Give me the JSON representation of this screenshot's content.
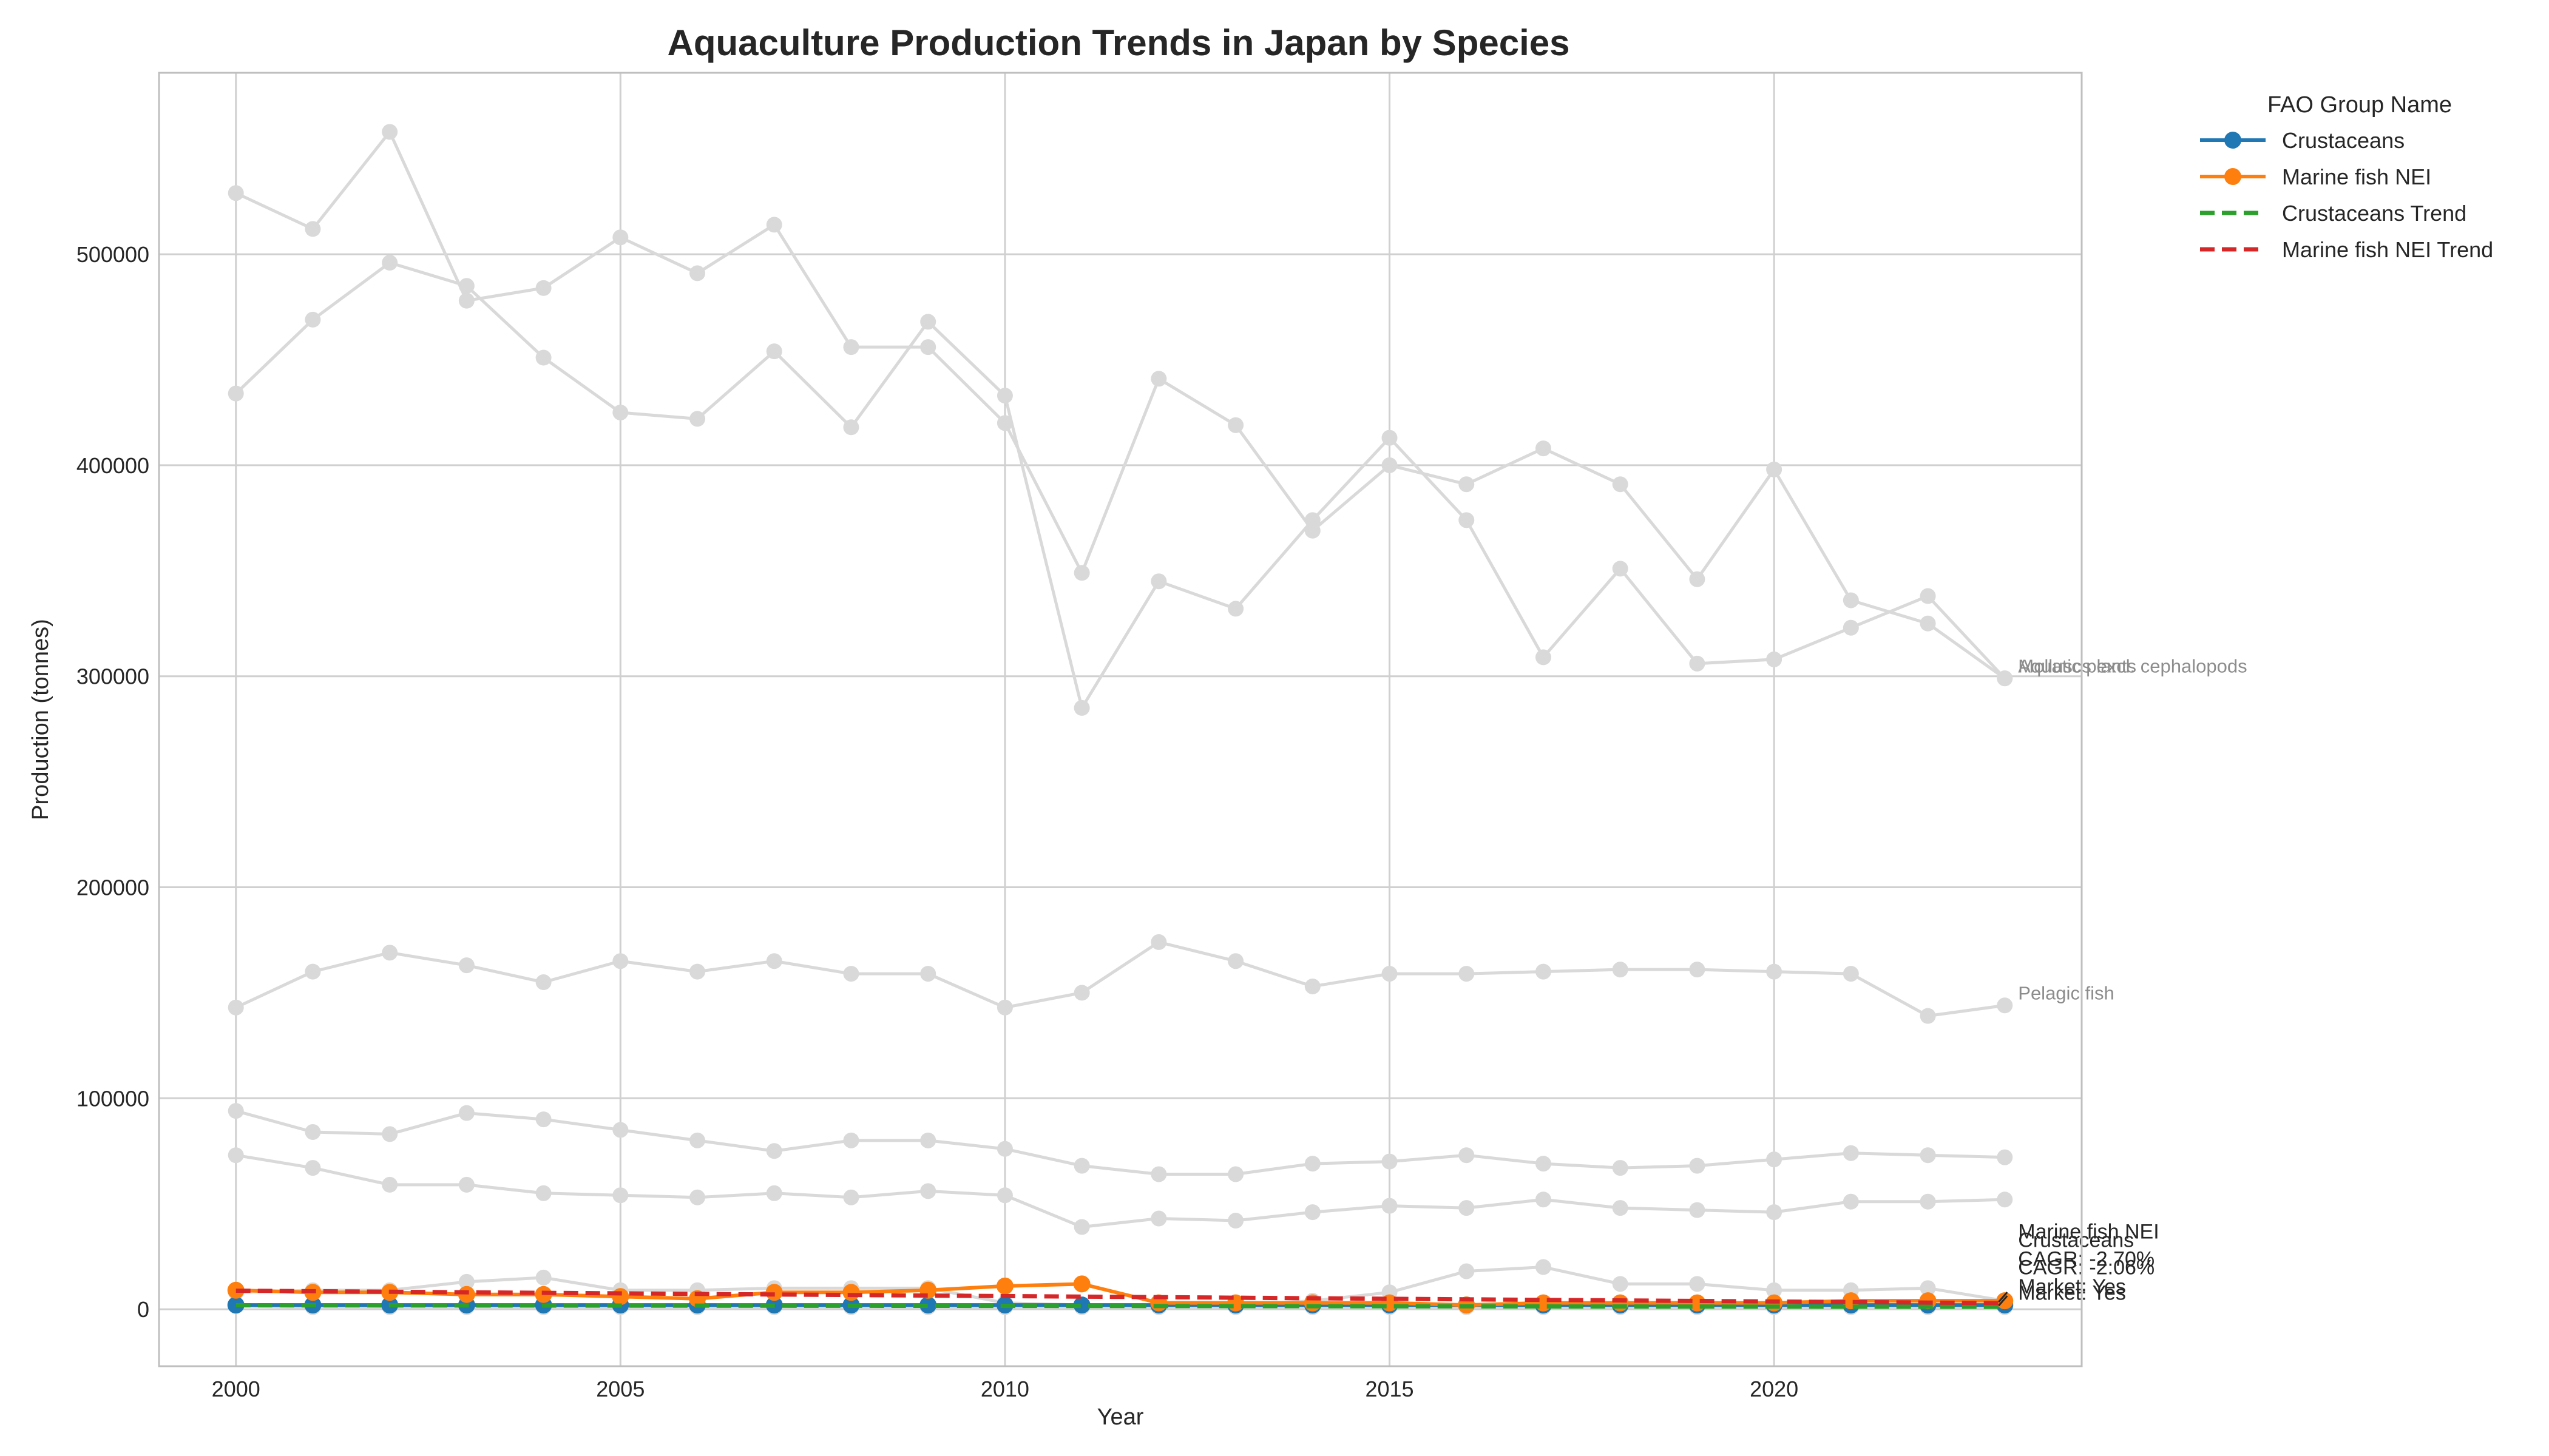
{
  "chart_data": {
    "type": "line",
    "title": "Aquaculture Production Trends in Japan by Species",
    "xlabel": "Year",
    "ylabel": "Production (tonnes)",
    "xlim": [
      1999,
      2024
    ],
    "ylim": [
      -27000,
      586000
    ],
    "x_ticks": [
      2000,
      2005,
      2010,
      2015,
      2020
    ],
    "y_ticks": [
      0,
      100000,
      200000,
      300000,
      400000,
      500000
    ],
    "grid": true,
    "x": [
      2000,
      2001,
      2002,
      2003,
      2004,
      2005,
      2006,
      2007,
      2008,
      2009,
      2010,
      2011,
      2012,
      2013,
      2014,
      2015,
      2016,
      2017,
      2018,
      2019,
      2020,
      2021,
      2022,
      2023
    ],
    "background_series": [
      {
        "values": [
          529000,
          512000,
          558000,
          478000,
          484000,
          508000,
          491000,
          514000,
          456000,
          456000,
          420000,
          349000,
          441000,
          419000,
          369000,
          400000,
          391000,
          408000,
          391000,
          346000,
          398000,
          336000,
          325000,
          299000
        ]
      },
      {
        "values": [
          434000,
          469000,
          496000,
          485000,
          451000,
          425000,
          422000,
          454000,
          418000,
          468000,
          433000,
          285000,
          345000,
          332000,
          374000,
          413000,
          374000,
          309000,
          351000,
          306000,
          308000,
          323000,
          338000,
          299000
        ]
      },
      {
        "values": [
          143000,
          160000,
          169000,
          163000,
          155000,
          165000,
          160000,
          165000,
          159000,
          159000,
          143000,
          150000,
          174000,
          165000,
          153000,
          159000,
          159000,
          160000,
          161000,
          161000,
          160000,
          159000,
          139000,
          144000
        ]
      },
      {
        "values": [
          94000,
          84000,
          83000,
          93000,
          90000,
          85000,
          80000,
          75000,
          80000,
          80000,
          76000,
          68000,
          64000,
          64000,
          69000,
          70000,
          73000,
          69000,
          67000,
          68000,
          71000,
          74000,
          73000,
          72000
        ]
      },
      {
        "values": [
          73000,
          67000,
          59000,
          59000,
          55000,
          54000,
          53000,
          55000,
          53000,
          56000,
          54000,
          39000,
          43000,
          42000,
          46000,
          49000,
          48000,
          52000,
          48000,
          47000,
          46000,
          51000,
          51000,
          52000
        ]
      },
      {
        "values": [
          8000,
          9000,
          9000,
          13000,
          15000,
          9000,
          9000,
          10000,
          10000,
          10000,
          3000,
          2000,
          2000,
          2000,
          4000,
          8000,
          18000,
          20000,
          12000,
          12000,
          9000,
          9000,
          10000,
          4000
        ]
      },
      {
        "values": [
          1500,
          1000,
          1000,
          1000,
          1000,
          1000,
          1000,
          1000,
          1000,
          1000,
          1000,
          1000,
          1000,
          1000,
          1000,
          1000,
          1000,
          1000,
          1000,
          1000,
          1000,
          1000,
          1000,
          1000
        ]
      }
    ],
    "background_labels": [
      {
        "text": "Aquatic plants",
        "x": 2023,
        "y": 305000
      },
      {
        "text": "Molluscs excl. cephalopods",
        "x": 2023,
        "y": 305000
      },
      {
        "text": "Pelagic fish",
        "x": 2023,
        "y": 150000
      }
    ],
    "series": [
      {
        "name": "Crustaceans",
        "color": "#1f77b4",
        "values": [
          2000,
          2000,
          2000,
          2000,
          2000,
          2000,
          2000,
          2000,
          2000,
          2000,
          2000,
          2000,
          2000,
          2000,
          2000,
          2000,
          2000,
          2000,
          2000,
          2000,
          2000,
          2000,
          2000,
          2000
        ]
      },
      {
        "name": "Marine fish NEI",
        "color": "#ff7f0e",
        "values": [
          9000,
          8000,
          8000,
          7000,
          7000,
          6000,
          5000,
          8000,
          8000,
          9000,
          11000,
          12000,
          3000,
          3000,
          3000,
          3000,
          2000,
          3000,
          3000,
          3000,
          3000,
          4000,
          4000,
          4000
        ]
      }
    ],
    "trends": [
      {
        "name": "Crustaceans Trend",
        "color": "#2ca02c",
        "start": 1900,
        "end": 1150
      },
      {
        "name": "Marine fish NEI Trend",
        "color": "#d62728",
        "start": 8800,
        "end": 2900
      }
    ],
    "highlight_labels": [
      {
        "text": "Marine fish NEI",
        "x": 2023,
        "y": 37000
      },
      {
        "text": "Crustaceans",
        "x": 2023,
        "y": 33000
      },
      {
        "text": "CAGR: -2.70%",
        "x": 2023,
        "y": 24000
      },
      {
        "text": "CAGR: -2.06%",
        "x": 2023,
        "y": 20000
      },
      {
        "text": "Market: Yes",
        "x": 2023,
        "y": 11000
      },
      {
        "text": "Market: Yes",
        "x": 2023,
        "y": 8000
      }
    ],
    "legend": {
      "title": "FAO Group Name",
      "position": "outside-top-right",
      "entries": [
        {
          "label": "Crustaceans",
          "color": "#1f77b4",
          "style": "line-marker"
        },
        {
          "label": "Marine fish NEI",
          "color": "#ff7f0e",
          "style": "line-marker"
        },
        {
          "label": "Crustaceans Trend",
          "color": "#2ca02c",
          "style": "dashed"
        },
        {
          "label": "Marine fish NEI Trend",
          "color": "#d62728",
          "style": "dashed"
        }
      ]
    },
    "colors": {
      "background": "#d9d9d9",
      "grid": "#d0d0d0",
      "frame": "#bfbfbf",
      "text": "#262626"
    }
  }
}
